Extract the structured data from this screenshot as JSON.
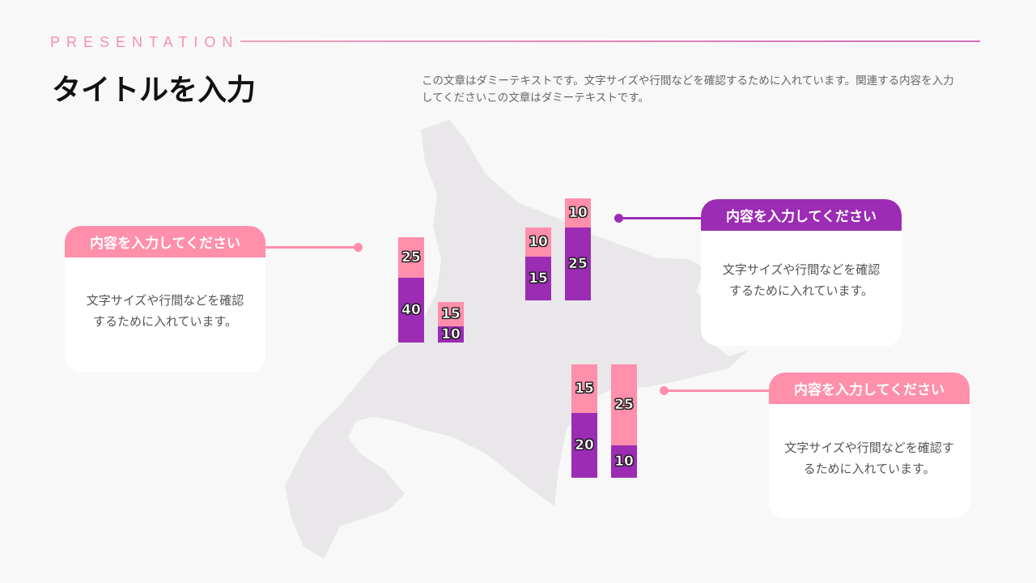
{
  "header": {
    "eyebrow": "PRESENTATION",
    "title": "タイトルを入力",
    "description": "この文章はダミーテキストです。文字サイズや行間などを確認するために入れています。関連する内容を入力してくださいこの文章はダミーテキストです。"
  },
  "colors": {
    "purple": "#9c2cb4",
    "pink": "#ff8fab",
    "map": "#e8e6e8"
  },
  "cards": [
    {
      "title": "内容を入力してください",
      "body": "文字サイズや行間などを確認するために入れています。",
      "color": "#ff8fab"
    },
    {
      "title": "内容を入力してください",
      "body": "文字サイズや行間などを確認するために入れています。",
      "color": "#9c2cb4"
    },
    {
      "title": "内容を入力してください",
      "body": "文字サイズや行間などを確認するために入れています。",
      "color": "#ff8fab"
    }
  ],
  "chart_data": {
    "type": "bar",
    "stacked": true,
    "groups": [
      {
        "bars": [
          {
            "bottom": 40,
            "top": 25
          },
          {
            "bottom": 10,
            "top": 15
          }
        ]
      },
      {
        "bars": [
          {
            "bottom": 15,
            "top": 10
          },
          {
            "bottom": 25,
            "top": 10
          }
        ]
      },
      {
        "bars": [
          {
            "bottom": 20,
            "top": 15
          },
          {
            "bottom": 10,
            "top": 25
          }
        ]
      }
    ]
  }
}
